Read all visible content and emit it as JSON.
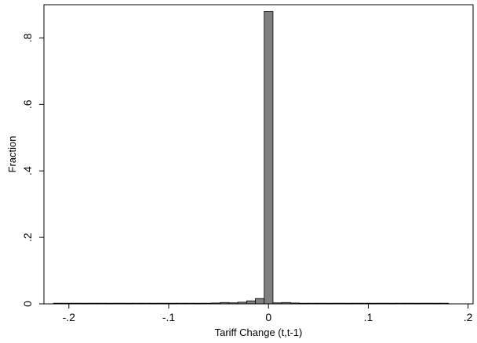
{
  "chart_data": {
    "type": "bar",
    "title": "",
    "xlabel": "Tariff Change (t,t-1)",
    "ylabel": "Fraction",
    "xlim": [
      -0.225,
      0.205
    ],
    "ylim": [
      0,
      0.9
    ],
    "x_ticks": [
      {
        "value": -0.2,
        "label": "-.2"
      },
      {
        "value": -0.1,
        "label": "-.1"
      },
      {
        "value": 0,
        "label": "0"
      },
      {
        "value": 0.1,
        "label": ".1"
      },
      {
        "value": 0.2,
        "label": ".2"
      }
    ],
    "y_ticks": [
      {
        "value": 0,
        "label": "0"
      },
      {
        "value": 0.2,
        "label": ".2"
      },
      {
        "value": 0.4,
        "label": ".4"
      },
      {
        "value": 0.6,
        "label": ".6"
      },
      {
        "value": 0.8,
        "label": ".8"
      }
    ],
    "bin_width": 0.0088,
    "bins": [
      {
        "x": -0.2155,
        "y": 0.0005
      },
      {
        "x": -0.2067,
        "y": 0.0005
      },
      {
        "x": -0.1979,
        "y": 0.0008
      },
      {
        "x": -0.1891,
        "y": 0.0005
      },
      {
        "x": -0.1803,
        "y": 0.0005
      },
      {
        "x": -0.1715,
        "y": 0.0004
      },
      {
        "x": -0.1627,
        "y": 0.0005
      },
      {
        "x": -0.1539,
        "y": 0.0004
      },
      {
        "x": -0.1451,
        "y": 0.0003
      },
      {
        "x": -0.1363,
        "y": 0.0004
      },
      {
        "x": -0.1275,
        "y": 0.0003
      },
      {
        "x": -0.1187,
        "y": 0.0004
      },
      {
        "x": -0.1099,
        "y": 0.0005
      },
      {
        "x": -0.1011,
        "y": 0.0006
      },
      {
        "x": -0.0923,
        "y": 0.0004
      },
      {
        "x": -0.0835,
        "y": 0.0005
      },
      {
        "x": -0.0747,
        "y": 0.0008
      },
      {
        "x": -0.0659,
        "y": 0.001
      },
      {
        "x": -0.0571,
        "y": 0.0025
      },
      {
        "x": -0.0483,
        "y": 0.004
      },
      {
        "x": -0.0395,
        "y": 0.003
      },
      {
        "x": -0.0307,
        "y": 0.005
      },
      {
        "x": -0.0219,
        "y": 0.009
      },
      {
        "x": -0.0131,
        "y": 0.016
      },
      {
        "x": -0.0043,
        "y": 0.88
      },
      {
        "x": 0.0045,
        "y": 0.003
      },
      {
        "x": 0.0133,
        "y": 0.004
      },
      {
        "x": 0.0221,
        "y": 0.0025
      },
      {
        "x": 0.0309,
        "y": 0.0012
      },
      {
        "x": 0.0397,
        "y": 0.001
      },
      {
        "x": 0.0485,
        "y": 0.0008
      },
      {
        "x": 0.0573,
        "y": 0.0006
      },
      {
        "x": 0.0661,
        "y": 0.0005
      },
      {
        "x": 0.0749,
        "y": 0.0005
      },
      {
        "x": 0.0837,
        "y": 0.0004
      },
      {
        "x": 0.0925,
        "y": 0.0005
      },
      {
        "x": 0.1013,
        "y": 0.0005
      },
      {
        "x": 0.1101,
        "y": 0.0004
      },
      {
        "x": 0.1189,
        "y": 0.0005
      },
      {
        "x": 0.1277,
        "y": 0.0004
      },
      {
        "x": 0.1365,
        "y": 0.0005
      },
      {
        "x": 0.1453,
        "y": 0.0004
      },
      {
        "x": 0.1541,
        "y": 0.0005
      },
      {
        "x": 0.1629,
        "y": 0.0004
      },
      {
        "x": 0.1717,
        "y": 0.0005
      }
    ],
    "bar_color": "#808080",
    "bar_edge_color": "#000000",
    "grid": false,
    "legend": "none"
  }
}
